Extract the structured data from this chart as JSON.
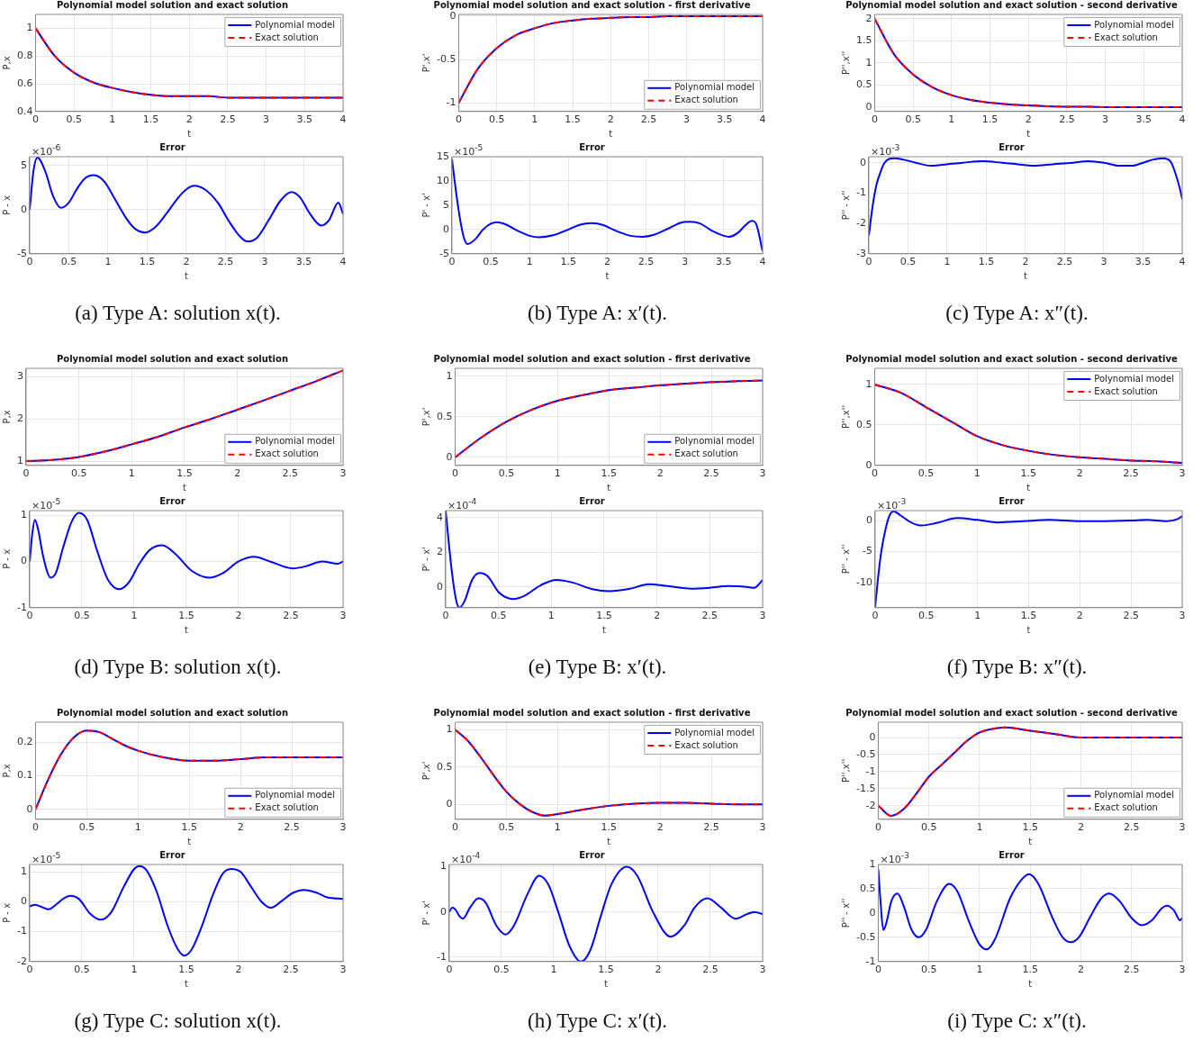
{
  "chart_data": [
    {
      "type": "line",
      "title": "Polynomial model solution and exact solution",
      "xlabel": "t",
      "ylabel": "P,x",
      "x": [
        0,
        0.25,
        0.5,
        0.75,
        1,
        1.25,
        1.5,
        1.75,
        2,
        2.25,
        2.5,
        2.75,
        3,
        3.25,
        3.5,
        3.75,
        4
      ],
      "xlim": [
        0,
        4
      ],
      "xticks": [
        0,
        0.5,
        1,
        1.5,
        2,
        2.5,
        3,
        3.5,
        4
      ],
      "ylim": [
        0.4,
        1.1
      ],
      "yticks": [
        0.4,
        0.6,
        0.8,
        1
      ],
      "grid": true,
      "legend": "top right",
      "series": [
        {
          "name": "Polynomial model",
          "color": "#0000ff",
          "line_style": "solid",
          "values": [
            1,
            0.8,
            0.68,
            0.61,
            0.57,
            0.54,
            0.52,
            0.51,
            0.51,
            0.51,
            0.5,
            0.5,
            0.5,
            0.5,
            0.5,
            0.5,
            0.5
          ]
        },
        {
          "name": "Exact solution",
          "color": "#ff0000",
          "line_style": "dashed",
          "values": [
            1,
            0.8,
            0.68,
            0.61,
            0.57,
            0.54,
            0.52,
            0.51,
            0.51,
            0.51,
            0.5,
            0.5,
            0.5,
            0.5,
            0.5,
            0.5,
            0.5
          ]
        }
      ]
    },
    {
      "type": "line",
      "title": "Error",
      "xlabel": "t",
      "ylabel": "P - x",
      "x": [
        0,
        0.05,
        0.1,
        0.2,
        0.3,
        0.4,
        0.5,
        0.6,
        0.7,
        0.82,
        0.95,
        1.1,
        1.25,
        1.35,
        1.47,
        1.6,
        1.75,
        1.9,
        2,
        2.1,
        2.25,
        2.4,
        2.55,
        2.68,
        2.78,
        2.9,
        3.05,
        3.2,
        3.34,
        3.45,
        3.58,
        3.72,
        3.82,
        3.94,
        4
      ],
      "xlim": [
        0,
        4
      ],
      "xticks": [
        0,
        0.5,
        1,
        1.5,
        2,
        2.5,
        3,
        3.5,
        4
      ],
      "ylim": [
        -5,
        6
      ],
      "yticks": [
        -5,
        0,
        5
      ],
      "grid": true,
      "annotations": [
        "×10$^{-6}$",
        "(a) Type A: solution x(t)."
      ],
      "series": [
        {
          "color": "#0000ff",
          "values": [
            0,
            4.5,
            5.9,
            4.3,
            1.5,
            0.2,
            0.8,
            2.3,
            3.5,
            3.9,
            3.2,
            1,
            -1.2,
            -2.2,
            -2.6,
            -2,
            -0.4,
            1.4,
            2.3,
            2.7,
            2.2,
            0.8,
            -1.4,
            -3,
            -3.6,
            -3.2,
            -1.2,
            1,
            2,
            1.4,
            -0.5,
            -1.8,
            -1.2,
            0.8,
            -0.5
          ]
        }
      ]
    },
    {
      "type": "line",
      "title": "Polynomial model solution and exact solution - first derivative",
      "xlabel": "t",
      "ylabel": "P',x'",
      "x": [
        0,
        0.25,
        0.5,
        0.75,
        1,
        1.25,
        1.5,
        1.75,
        2,
        2.25,
        2.5,
        2.75,
        3,
        3.25,
        3.5,
        3.75,
        4
      ],
      "xlim": [
        0,
        4
      ],
      "xticks": [
        0,
        0.5,
        1,
        1.5,
        2,
        2.5,
        3,
        3.5,
        4
      ],
      "ylim": [
        -1.1,
        0.02
      ],
      "yticks": [
        -1,
        -0.5,
        0
      ],
      "grid": true,
      "legend": "bottom right",
      "series": [
        {
          "name": "Polynomial model",
          "color": "#0000ff",
          "line_style": "solid",
          "values": [
            -1,
            -0.61,
            -0.37,
            -0.22,
            -0.14,
            -0.08,
            -0.05,
            -0.03,
            -0.02,
            -0.01,
            -0.01,
            0,
            0,
            0,
            0,
            0,
            0
          ]
        },
        {
          "name": "Exact solution",
          "color": "#ff0000",
          "line_style": "dashed",
          "values": [
            -1,
            -0.61,
            -0.37,
            -0.22,
            -0.14,
            -0.08,
            -0.05,
            -0.03,
            -0.02,
            -0.01,
            -0.01,
            0,
            0,
            0,
            0,
            0,
            0
          ]
        }
      ]
    },
    {
      "type": "line",
      "title": "Error",
      "xlabel": "t",
      "ylabel": "P' - x'",
      "x": [
        0,
        0.05,
        0.1,
        0.15,
        0.2,
        0.3,
        0.4,
        0.5,
        0.58,
        0.7,
        0.85,
        1,
        1.12,
        1.3,
        1.5,
        1.65,
        1.8,
        1.95,
        2.1,
        2.3,
        2.45,
        2.6,
        2.8,
        2.95,
        3.07,
        3.2,
        3.35,
        3.5,
        3.57,
        3.68,
        3.78,
        3.86,
        3.92,
        4
      ],
      "xlim": [
        0,
        4
      ],
      "xticks": [
        0,
        0.5,
        1,
        1.5,
        2,
        2.5,
        3,
        3.5,
        4
      ],
      "ylim": [
        -5,
        15
      ],
      "yticks": [
        -5,
        0,
        5,
        10,
        15
      ],
      "grid": true,
      "annotations": [
        "×10$^{-5}$",
        "(b) Type A: x′(t)."
      ],
      "series": [
        {
          "color": "#0000ff",
          "values": [
            14.5,
            8,
            2.5,
            -1.5,
            -3,
            -2,
            0,
            1.2,
            1.5,
            1,
            -0.3,
            -1.3,
            -1.6,
            -1.2,
            0,
            1,
            1.3,
            0.9,
            -0.2,
            -1.3,
            -1.5,
            -1.1,
            0.3,
            1.4,
            1.6,
            1.2,
            -0.3,
            -1.3,
            -1.5,
            -0.7,
            0.9,
            1.8,
            1,
            -4.5
          ]
        }
      ]
    },
    {
      "type": "line",
      "title": "Polynomial model solution and exact solution - second derivative",
      "xlabel": "t",
      "ylabel": "P'',x''",
      "x": [
        0,
        0.25,
        0.5,
        0.75,
        1,
        1.25,
        1.5,
        1.75,
        2,
        2.25,
        2.5,
        2.75,
        3,
        3.25,
        3.5,
        3.75,
        4
      ],
      "xlim": [
        0,
        4
      ],
      "xticks": [
        0,
        0.5,
        1,
        1.5,
        2,
        2.5,
        3,
        3.5,
        4
      ],
      "ylim": [
        -0.1,
        2.1
      ],
      "yticks": [
        0,
        0.5,
        1,
        1.5,
        2
      ],
      "grid": true,
      "legend": "top right",
      "series": [
        {
          "name": "Polynomial model",
          "color": "#0000ff",
          "line_style": "solid",
          "values": [
            2,
            1.2,
            0.74,
            0.45,
            0.27,
            0.16,
            0.1,
            0.06,
            0.04,
            0.02,
            0.01,
            0.01,
            0,
            0,
            0,
            0,
            0
          ]
        },
        {
          "name": "Exact solution",
          "color": "#ff0000",
          "line_style": "dashed",
          "values": [
            2,
            1.2,
            0.74,
            0.45,
            0.27,
            0.16,
            0.1,
            0.06,
            0.04,
            0.02,
            0.01,
            0.01,
            0,
            0,
            0,
            0,
            0
          ]
        }
      ]
    },
    {
      "type": "line",
      "title": "Error",
      "xlabel": "t",
      "ylabel": "P'' - x''",
      "x": [
        0,
        0.05,
        0.1,
        0.15,
        0.2,
        0.33,
        0.45,
        0.6,
        0.8,
        1,
        1.2,
        1.45,
        1.7,
        1.9,
        2.1,
        2.35,
        2.6,
        2.8,
        3,
        3.2,
        3.35,
        3.5,
        3.62,
        3.75,
        3.85,
        3.92,
        3.97,
        4
      ],
      "xlim": [
        0,
        4
      ],
      "xticks": [
        0,
        0.5,
        1,
        1.5,
        2,
        2.5,
        3,
        3.5,
        4
      ],
      "ylim": [
        -3,
        0.2
      ],
      "yticks": [
        -3,
        -2,
        -1,
        0
      ],
      "grid": true,
      "annotations": [
        "×10$^{-3}$",
        "(c) Type A: x″(t)."
      ],
      "series": [
        {
          "color": "#0000ff",
          "values": [
            -2.4,
            -1.4,
            -0.7,
            -0.3,
            0,
            0.15,
            0.1,
            0,
            -0.1,
            -0.05,
            0,
            0.05,
            0,
            -0.05,
            -0.1,
            -0.05,
            0,
            0.05,
            0,
            -0.1,
            -0.1,
            0,
            0.1,
            0.15,
            0.05,
            -0.4,
            -0.85,
            -1.2
          ]
        }
      ]
    },
    {
      "type": "line",
      "title": "Polynomial model solution and exact solution",
      "xlabel": "t",
      "ylabel": "P,x",
      "x": [
        0,
        0.25,
        0.5,
        0.75,
        1,
        1.25,
        1.5,
        1.75,
        2,
        2.25,
        2.5,
        2.75,
        3
      ],
      "xlim": [
        0,
        3
      ],
      "xticks": [
        0,
        0.5,
        1,
        1.5,
        2,
        2.5,
        3
      ],
      "ylim": [
        0.9,
        3.2
      ],
      "yticks": [
        1,
        2,
        3
      ],
      "grid": true,
      "legend": "bottom right",
      "series": [
        {
          "name": "Polynomial model",
          "color": "#0000ff",
          "line_style": "solid",
          "values": [
            1,
            1.03,
            1.1,
            1.23,
            1.4,
            1.58,
            1.8,
            2,
            2.22,
            2.44,
            2.67,
            2.9,
            3.15
          ]
        },
        {
          "name": "Exact solution",
          "color": "#ff0000",
          "line_style": "dashed",
          "values": [
            1,
            1.03,
            1.1,
            1.23,
            1.4,
            1.58,
            1.8,
            2,
            2.22,
            2.44,
            2.67,
            2.9,
            3.15
          ]
        }
      ]
    },
    {
      "type": "line",
      "title": "Error",
      "xlabel": "t",
      "ylabel": "P - x",
      "x": [
        0,
        0.025,
        0.05,
        0.08,
        0.13,
        0.2,
        0.25,
        0.32,
        0.4,
        0.47,
        0.55,
        0.65,
        0.75,
        0.86,
        0.95,
        1.05,
        1.15,
        1.27,
        1.4,
        1.55,
        1.72,
        1.85,
        2,
        2.15,
        2.3,
        2.52,
        2.65,
        2.8,
        2.95,
        3
      ],
      "xlim": [
        0,
        3
      ],
      "xticks": [
        0,
        0.5,
        1,
        1.5,
        2,
        2.5,
        3
      ],
      "ylim": [
        -1,
        1.1
      ],
      "yticks": [
        -1,
        0,
        1
      ],
      "grid": true,
      "annotations": [
        "×10$^{-5}$",
        "(d) Type B: solution x(t)."
      ],
      "series": [
        {
          "color": "#0000ff",
          "values": [
            0,
            0.6,
            0.9,
            0.7,
            0.1,
            -0.35,
            -0.25,
            0.3,
            0.85,
            1.05,
            0.9,
            0.2,
            -0.4,
            -0.6,
            -0.45,
            -0.05,
            0.25,
            0.35,
            0.15,
            -0.2,
            -0.35,
            -0.25,
            0,
            0.1,
            0,
            -0.15,
            -0.1,
            0,
            -0.05,
            0
          ]
        }
      ]
    },
    {
      "type": "line",
      "title": "Polynomial model solution and exact solution - first derivative",
      "xlabel": "t",
      "ylabel": "P',x'",
      "x": [
        0,
        0.25,
        0.5,
        0.75,
        1,
        1.25,
        1.5,
        1.75,
        2,
        2.25,
        2.5,
        2.75,
        3
      ],
      "xlim": [
        0,
        3
      ],
      "xticks": [
        0,
        0.5,
        1,
        1.5,
        2,
        2.5,
        3
      ],
      "ylim": [
        -0.1,
        1.1
      ],
      "yticks": [
        0,
        0.5,
        1
      ],
      "grid": true,
      "legend": "bottom right",
      "series": [
        {
          "name": "Polynomial model",
          "color": "#0000ff",
          "line_style": "solid",
          "values": [
            0,
            0.24,
            0.44,
            0.59,
            0.7,
            0.77,
            0.83,
            0.86,
            0.89,
            0.91,
            0.93,
            0.94,
            0.95
          ]
        },
        {
          "name": "Exact solution",
          "color": "#ff0000",
          "line_style": "dashed",
          "values": [
            0,
            0.24,
            0.44,
            0.59,
            0.7,
            0.77,
            0.83,
            0.86,
            0.89,
            0.91,
            0.93,
            0.94,
            0.95
          ]
        }
      ]
    },
    {
      "type": "line",
      "title": "Error",
      "xlabel": "t",
      "ylabel": "P' - x'",
      "x": [
        0,
        0.03,
        0.06,
        0.1,
        0.13,
        0.18,
        0.25,
        0.32,
        0.4,
        0.5,
        0.64,
        0.75,
        0.9,
        1.05,
        1.2,
        1.4,
        1.55,
        1.75,
        1.92,
        2.1,
        2.32,
        2.5,
        2.68,
        2.85,
        2.92,
        3
      ],
      "xlim": [
        0,
        3
      ],
      "xticks": [
        0,
        0.5,
        1,
        1.5,
        2,
        2.5,
        3
      ],
      "ylim": [
        -1.2,
        4.4
      ],
      "yticks": [
        0,
        2,
        4
      ],
      "grid": true,
      "annotations": [
        "×10$^{-4}$",
        "(e) Type B: x′(t)."
      ],
      "series": [
        {
          "color": "#0000ff",
          "values": [
            4.4,
            2.5,
            0.8,
            -0.8,
            -1.2,
            -0.8,
            0.4,
            0.8,
            0.6,
            -0.3,
            -0.7,
            -0.5,
            0.1,
            0.4,
            0.25,
            -0.15,
            -0.25,
            -0.1,
            0.15,
            0.05,
            -0.1,
            -0.05,
            0.05,
            0,
            -0.05,
            0.4
          ]
        }
      ]
    },
    {
      "type": "line",
      "title": "Polynomial model solution and exact solution - second derivative",
      "xlabel": "t",
      "ylabel": "P'',x''",
      "x": [
        0,
        0.25,
        0.5,
        0.75,
        1,
        1.25,
        1.5,
        1.75,
        2,
        2.25,
        2.5,
        2.75,
        3
      ],
      "xlim": [
        0,
        3
      ],
      "xticks": [
        0,
        0.5,
        1,
        1.5,
        2,
        2.5,
        3
      ],
      "ylim": [
        0,
        1.2
      ],
      "yticks": [
        0,
        0.5,
        1
      ],
      "grid": true,
      "legend": "top right",
      "series": [
        {
          "name": "Polynomial model",
          "color": "#0000ff",
          "line_style": "solid",
          "values": [
            1,
            0.9,
            0.72,
            0.54,
            0.36,
            0.25,
            0.18,
            0.13,
            0.1,
            0.08,
            0.06,
            0.05,
            0.03
          ]
        },
        {
          "name": "Exact solution",
          "color": "#ff0000",
          "line_style": "dashed",
          "values": [
            1,
            0.9,
            0.72,
            0.54,
            0.36,
            0.25,
            0.18,
            0.13,
            0.1,
            0.08,
            0.06,
            0.05,
            0.03
          ]
        }
      ]
    },
    {
      "type": "line",
      "title": "Error",
      "xlabel": "t",
      "ylabel": "P'' - x''",
      "x": [
        0,
        0.03,
        0.06,
        0.1,
        0.14,
        0.18,
        0.25,
        0.35,
        0.45,
        0.6,
        0.8,
        1,
        1.2,
        1.45,
        1.7,
        2,
        2.2,
        2.5,
        2.65,
        2.85,
        2.95,
        3
      ],
      "xlim": [
        0,
        3
      ],
      "xticks": [
        0,
        0.5,
        1,
        1.5,
        2,
        2.5,
        3
      ],
      "ylim": [
        -14,
        1.6
      ],
      "yticks": [
        -10,
        -5,
        0
      ],
      "grid": true,
      "annotations": [
        "×10$^{-3}$",
        "(f) Type B: x″(t)."
      ],
      "series": [
        {
          "color": "#0000ff",
          "values": [
            -14,
            -9,
            -5,
            -1.5,
            0.8,
            1.5,
            0.8,
            -0.3,
            -0.8,
            -0.4,
            0.4,
            0.1,
            -0.3,
            -0.1,
            0.1,
            -0.1,
            -0.1,
            0,
            0.1,
            -0.1,
            0.2,
            0.7
          ]
        }
      ]
    },
    {
      "type": "line",
      "title": "Polynomial model solution and exact solution",
      "xlabel": "t",
      "ylabel": "P,x",
      "x": [
        0,
        0.125,
        0.25,
        0.375,
        0.5,
        0.625,
        0.75,
        0.875,
        1,
        1.25,
        1.5,
        1.75,
        2,
        2.25,
        2.5,
        2.75,
        3
      ],
      "xlim": [
        0,
        3
      ],
      "xticks": [
        0,
        0.5,
        1,
        1.5,
        2,
        2.5,
        3
      ],
      "ylim": [
        -0.03,
        0.26
      ],
      "yticks": [
        0,
        0.1,
        0.2
      ],
      "grid": true,
      "legend": "bottom right",
      "series": [
        {
          "name": "Polynomial model",
          "color": "#0000ff",
          "line_style": "solid",
          "values": [
            0,
            0.09,
            0.165,
            0.215,
            0.235,
            0.23,
            0.21,
            0.19,
            0.175,
            0.155,
            0.145,
            0.145,
            0.15,
            0.155,
            0.155,
            0.155,
            0.155
          ]
        },
        {
          "name": "Exact solution",
          "color": "#ff0000",
          "line_style": "dashed",
          "values": [
            0,
            0.09,
            0.165,
            0.215,
            0.235,
            0.23,
            0.21,
            0.19,
            0.175,
            0.155,
            0.145,
            0.145,
            0.15,
            0.155,
            0.155,
            0.155,
            0.155
          ]
        }
      ]
    },
    {
      "type": "line",
      "title": "Error",
      "xlabel": "t",
      "ylabel": "P - x",
      "x": [
        0,
        0.05,
        0.1,
        0.18,
        0.25,
        0.32,
        0.39,
        0.47,
        0.58,
        0.68,
        0.78,
        0.9,
        1,
        1.05,
        1.12,
        1.22,
        1.32,
        1.42,
        1.48,
        1.55,
        1.65,
        1.75,
        1.85,
        1.93,
        2.02,
        2.12,
        2.22,
        2.31,
        2.42,
        2.52,
        2.63,
        2.75,
        2.85,
        3
      ],
      "xlim": [
        0,
        3
      ],
      "xticks": [
        0,
        0.5,
        1,
        1.5,
        2,
        2.5,
        3
      ],
      "ylim": [
        -2,
        1.25
      ],
      "yticks": [
        -2,
        -1,
        0,
        1
      ],
      "grid": true,
      "annotations": [
        "×10$^{-5}$",
        "(g) Type C: solution x(t)."
      ],
      "series": [
        {
          "color": "#0000ff",
          "values": [
            -0.15,
            -0.1,
            -0.15,
            -0.25,
            -0.1,
            0.1,
            0.2,
            0.1,
            -0.4,
            -0.6,
            -0.35,
            0.5,
            1.1,
            1.2,
            1.05,
            0.3,
            -0.8,
            -1.6,
            -1.8,
            -1.6,
            -0.8,
            0.2,
            0.95,
            1.1,
            1,
            0.5,
            0,
            -0.2,
            0.05,
            0.3,
            0.4,
            0.3,
            0.15,
            0.1
          ]
        }
      ]
    },
    {
      "type": "line",
      "title": "Polynomial model solution and exact solution - first derivative",
      "xlabel": "t",
      "ylabel": "P',x'",
      "x": [
        0,
        0.125,
        0.25,
        0.375,
        0.5,
        0.625,
        0.75,
        0.875,
        1,
        1.25,
        1.5,
        1.75,
        2,
        2.25,
        2.5,
        2.75,
        3
      ],
      "xlim": [
        0,
        3
      ],
      "xticks": [
        0,
        0.5,
        1,
        1.5,
        2,
        2.5,
        3
      ],
      "ylim": [
        -0.2,
        1.1
      ],
      "yticks": [
        0,
        0.5,
        1
      ],
      "grid": true,
      "legend": "top right",
      "series": [
        {
          "name": "Polynomial model",
          "color": "#0000ff",
          "line_style": "solid",
          "values": [
            1,
            0.85,
            0.63,
            0.39,
            0.17,
            0.01,
            -0.1,
            -0.15,
            -0.13,
            -0.07,
            -0.02,
            0.01,
            0.02,
            0.02,
            0.01,
            0,
            0
          ]
        },
        {
          "name": "Exact solution",
          "color": "#ff0000",
          "line_style": "dashed",
          "values": [
            1,
            0.85,
            0.63,
            0.39,
            0.17,
            0.01,
            -0.1,
            -0.15,
            -0.13,
            -0.07,
            -0.02,
            0.01,
            0.02,
            0.02,
            0.01,
            0,
            0
          ]
        }
      ]
    },
    {
      "type": "line",
      "title": "Error",
      "xlabel": "t",
      "ylabel": "P' - x'",
      "x": [
        0,
        0.03,
        0.06,
        0.1,
        0.13,
        0.2,
        0.28,
        0.35,
        0.45,
        0.54,
        0.62,
        0.75,
        0.86,
        0.95,
        1.05,
        1.15,
        1.26,
        1.35,
        1.45,
        1.55,
        1.7,
        1.8,
        1.95,
        2.12,
        2.25,
        2.35,
        2.47,
        2.6,
        2.74,
        2.85,
        2.92,
        3
      ],
      "xlim": [
        0,
        3
      ],
      "xticks": [
        0,
        0.5,
        1,
        1.5,
        2,
        2.5,
        3
      ],
      "ylim": [
        -1.1,
        1.05
      ],
      "yticks": [
        -1,
        0,
        1
      ],
      "grid": true,
      "annotations": [
        "×10$^{-4}$",
        "(h) Type C: x′(t)."
      ],
      "series": [
        {
          "color": "#0000ff",
          "values": [
            0,
            0.1,
            0.05,
            -0.1,
            -0.15,
            0.1,
            0.3,
            0.2,
            -0.3,
            -0.5,
            -0.3,
            0.4,
            0.8,
            0.6,
            -0.05,
            -0.75,
            -1.1,
            -0.85,
            -0.1,
            0.6,
            1,
            0.8,
            0,
            -0.55,
            -0.3,
            0.1,
            0.3,
            0.1,
            -0.15,
            -0.05,
            0,
            -0.05
          ]
        }
      ]
    },
    {
      "type": "line",
      "title": "Polynomial model solution and exact solution - second derivative",
      "xlabel": "t",
      "ylabel": "P'',x''",
      "x": [
        0,
        0.125,
        0.25,
        0.375,
        0.5,
        0.625,
        0.75,
        0.875,
        1,
        1.125,
        1.25,
        1.5,
        1.75,
        2,
        2.25,
        2.5,
        2.75,
        3
      ],
      "xlim": [
        0,
        3
      ],
      "xticks": [
        0,
        0.5,
        1,
        1.5,
        2,
        2.5,
        3
      ],
      "ylim": [
        -2.4,
        0.45
      ],
      "yticks": [
        -2,
        -1.5,
        -1,
        -0.5,
        0
      ],
      "grid": true,
      "legend": "bottom right",
      "series": [
        {
          "name": "Polynomial model",
          "color": "#0000ff",
          "line_style": "solid",
          "values": [
            -2,
            -2.3,
            -2.1,
            -1.65,
            -1.15,
            -0.8,
            -0.45,
            -0.1,
            0.15,
            0.25,
            0.3,
            0.2,
            0.1,
            0,
            0,
            0,
            0,
            0
          ]
        },
        {
          "name": "Exact solution",
          "color": "#ff0000",
          "line_style": "dashed",
          "values": [
            -2,
            -2.3,
            -2.1,
            -1.65,
            -1.15,
            -0.8,
            -0.45,
            -0.1,
            0.15,
            0.25,
            0.3,
            0.2,
            0.1,
            0,
            0,
            0,
            0,
            0
          ]
        }
      ]
    },
    {
      "type": "line",
      "title": "Error",
      "xlabel": "t",
      "ylabel": "P'' - x''",
      "x": [
        0,
        0.02,
        0.05,
        0.08,
        0.13,
        0.19,
        0.25,
        0.33,
        0.4,
        0.47,
        0.58,
        0.7,
        0.78,
        0.9,
        1,
        1.07,
        1.15,
        1.3,
        1.42,
        1.49,
        1.58,
        1.72,
        1.82,
        1.9,
        1.98,
        2.1,
        2.2,
        2.28,
        2.38,
        2.5,
        2.6,
        2.7,
        2.8,
        2.85,
        2.92,
        2.98,
        3
      ],
      "xlim": [
        0,
        3
      ],
      "xticks": [
        0,
        0.5,
        1,
        1.5,
        2,
        2.5,
        3
      ],
      "ylim": [
        -1,
        1
      ],
      "yticks": [
        -1,
        -0.5,
        0,
        0.5,
        1
      ],
      "grid": true,
      "annotations": [
        "×10$^{-3}$",
        "(i) Type C: x″(t)."
      ],
      "series": [
        {
          "color": "#0000ff",
          "values": [
            0.9,
            0.3,
            -0.35,
            -0.2,
            0.25,
            0.4,
            0.15,
            -0.35,
            -0.5,
            -0.35,
            0.25,
            0.6,
            0.45,
            -0.2,
            -0.65,
            -0.75,
            -0.55,
            0.3,
            0.7,
            0.8,
            0.6,
            -0.1,
            -0.5,
            -0.6,
            -0.5,
            -0.05,
            0.3,
            0.4,
            0.25,
            -0.1,
            -0.25,
            -0.15,
            0.1,
            0.15,
            0.05,
            -0.15,
            -0.1
          ]
        }
      ]
    }
  ]
}
